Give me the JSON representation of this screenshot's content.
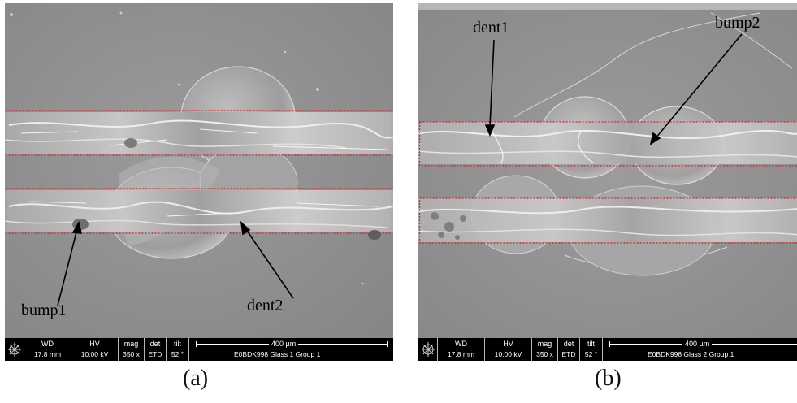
{
  "panels": [
    {
      "id": "a",
      "caption": "(a)",
      "annotations": [
        "bump1",
        "dent2"
      ],
      "info": {
        "wd_label": "WD",
        "wd_value": "17.8 mm",
        "hv_label": "HV",
        "hv_value": "10.00 kV",
        "mag_label": "mag",
        "mag_value": "350 x",
        "det_label": "det",
        "det_value": "ETD",
        "tilt_label": "tilt",
        "tilt_value": "52 °",
        "scale_label": "400 µm",
        "sample_label": "E0BDK998 Glass 1 Group 1"
      }
    },
    {
      "id": "b",
      "caption": "(b)",
      "annotations": [
        "dent1",
        "bump2"
      ],
      "info": {
        "wd_label": "WD",
        "wd_value": "17.8 mm",
        "hv_label": "HV",
        "hv_value": "10.00 kV",
        "mag_label": "mag",
        "mag_value": "350 x",
        "det_label": "det",
        "det_value": "ETD",
        "tilt_label": "tilt",
        "tilt_value": "52 °",
        "scale_label": "400 µm",
        "sample_label": "E0BDK998 Glass 2 Group 1"
      }
    }
  ],
  "colors": {
    "substrate": "#8f8f8f",
    "groove_box": "#d0202a",
    "arrow": "#000000"
  }
}
